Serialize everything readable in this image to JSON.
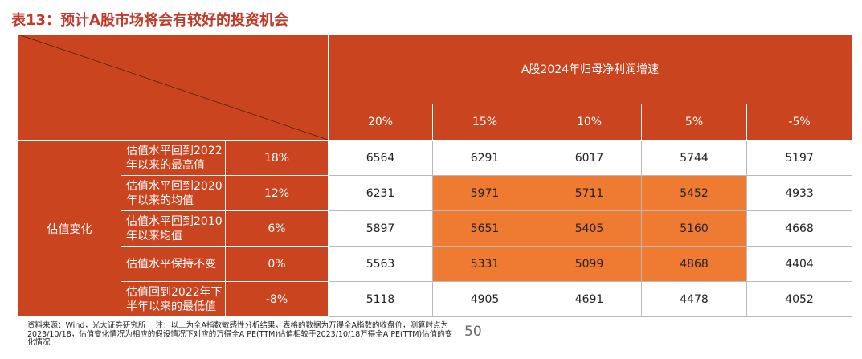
{
  "title": "表13：预计A股市场将会有较好的投资机会",
  "header": {
    "group_label": "A股2024年归母净利润增速",
    "columns": [
      "20%",
      "15%",
      "10%",
      "5%",
      "-5%"
    ]
  },
  "row_group_label": "估值变化",
  "rows": [
    {
      "label": "估值水平回到2022年以来的最高值",
      "change": "18%",
      "values": [
        "6564",
        "6291",
        "6017",
        "5744",
        "5197"
      ]
    },
    {
      "label": "估值水平回到2020年以来的均值",
      "change": "12%",
      "values": [
        "6231",
        "5971",
        "5711",
        "5452",
        "4933"
      ]
    },
    {
      "label": "估值水平回到2010年以来均值",
      "change": "6%",
      "values": [
        "5897",
        "5651",
        "5405",
        "5160",
        "4668"
      ]
    },
    {
      "label": "估值水平保持不变",
      "change": "0%",
      "values": [
        "5563",
        "5331",
        "5099",
        "4868",
        "4404"
      ]
    },
    {
      "label": "估值回到2022年下半年以来的最低值",
      "change": "-8%",
      "values": [
        "5118",
        "4905",
        "4691",
        "4478",
        "4052"
      ]
    }
  ],
  "highlight_color": "#ef7a32",
  "header_color": "#c9441f",
  "footer": {
    "source": "资料来源：Wind，光大证券研究所",
    "note": "注：以上为全A指数敏感性分析结果，表格的数据为万得全A指数的收盘价，测算时点为2023/10/18，估值变化情况为相应的假设情况下对应的万得全A PE(TTM)估值相较于2023/10/18万得全A PE(TTM)估值的变化情况"
  },
  "page_number": "50"
}
